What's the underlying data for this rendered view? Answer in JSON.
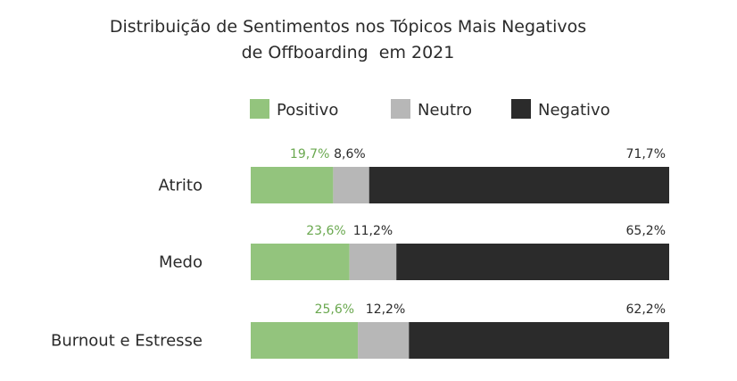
{
  "chart_data": {
    "type": "bar",
    "orientation": "horizontal",
    "stacked": true,
    "percent": true,
    "title_lines": [
      "Distribuição de Sentimentos nos Tópicos Mais Negativos",
      "de Offboarding  em 2021"
    ],
    "categories": [
      "Atrito",
      "Medo",
      "Burnout e Estresse"
    ],
    "series": [
      {
        "name": "Positivo",
        "color": "#93c47d",
        "label_color": "#6aa84f",
        "values": [
          19.7,
          23.6,
          25.6
        ],
        "labels": [
          "19,7%",
          "23,6%",
          "25,6%"
        ]
      },
      {
        "name": "Neutro",
        "color": "#b7b7b7",
        "label_color": "#2b2b2b",
        "values": [
          8.6,
          11.2,
          12.2
        ],
        "labels": [
          "8,6%",
          "11,2%",
          "12,2%"
        ]
      },
      {
        "name": "Negativo",
        "color": "#2b2b2b",
        "label_color": "#2b2b2b",
        "values": [
          71.7,
          65.2,
          62.2
        ],
        "labels": [
          "71,7%",
          "65,2%",
          "62,2%"
        ]
      }
    ],
    "xlim": [
      0,
      100
    ],
    "legend_position": "top"
  }
}
